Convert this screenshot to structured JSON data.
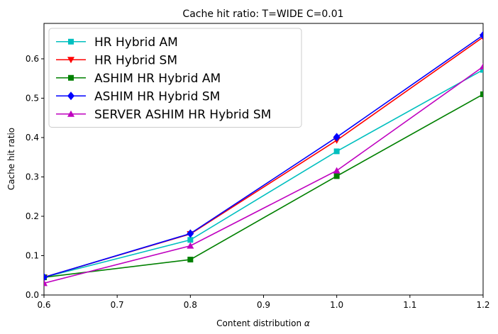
{
  "chart_data": {
    "type": "line",
    "title": "Cache hit ratio: T=WIDE C=0.01",
    "xlabel": "Content distribution",
    "xlabel_symbol": "α",
    "ylabel": "Cache hit ratio",
    "x": [
      0.6,
      0.8,
      1.0,
      1.2
    ],
    "xlim": [
      0.6,
      1.2
    ],
    "ylim": [
      0.0,
      0.69
    ],
    "xticks": [
      "0.6",
      "0.7",
      "0.8",
      "0.9",
      "1.0",
      "1.1",
      "1.2"
    ],
    "xtick_values": [
      0.6,
      0.7,
      0.8,
      0.9,
      1.0,
      1.1,
      1.2
    ],
    "yticks": [
      "0.0",
      "0.1",
      "0.2",
      "0.3",
      "0.4",
      "0.5",
      "0.6"
    ],
    "ytick_values": [
      0.0,
      0.1,
      0.2,
      0.3,
      0.4,
      0.5,
      0.6
    ],
    "grid": false,
    "legend_position": "top-left",
    "series": [
      {
        "name": "HR Hybrid AM",
        "color": "#00bfbf",
        "marker": "square",
        "values": [
          0.045,
          0.14,
          0.365,
          0.572
        ]
      },
      {
        "name": "HR Hybrid SM",
        "color": "#ff0000",
        "marker": "triangle-down",
        "values": [
          0.045,
          0.155,
          0.393,
          0.655
        ]
      },
      {
        "name": "ASHIM HR Hybrid AM",
        "color": "#008000",
        "marker": "square",
        "values": [
          0.045,
          0.09,
          0.302,
          0.51
        ]
      },
      {
        "name": "ASHIM HR Hybrid SM",
        "color": "#0000ff",
        "marker": "diamond",
        "values": [
          0.045,
          0.156,
          0.401,
          0.66
        ]
      },
      {
        "name": "SERVER ASHIM HR Hybrid SM",
        "color": "#bf00bf",
        "marker": "triangle-up",
        "values": [
          0.03,
          0.125,
          0.316,
          0.58
        ]
      }
    ]
  }
}
